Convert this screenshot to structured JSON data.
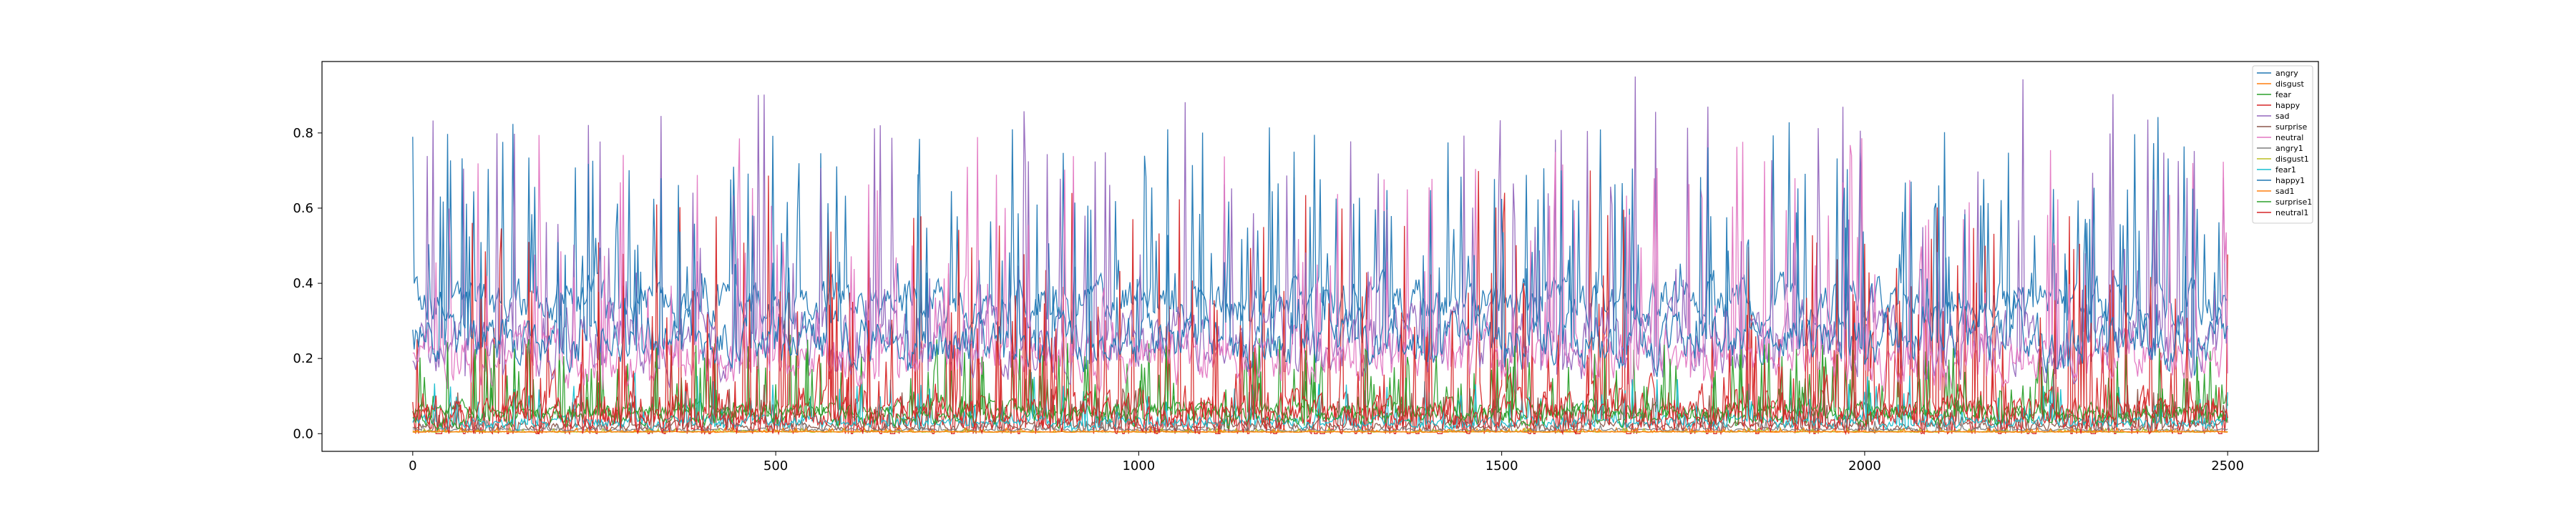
{
  "chart_data": {
    "type": "line",
    "title": "",
    "xlabel": "",
    "ylabel": "",
    "xlim": [
      -125,
      2625
    ],
    "ylim": [
      -0.047,
      0.99
    ],
    "x_ticks": [
      0,
      500,
      1000,
      1500,
      2000,
      2500
    ],
    "x_tick_labels": [
      "0",
      "500",
      "1000",
      "1500",
      "2000",
      "2500"
    ],
    "y_ticks": [
      0.0,
      0.2,
      0.4,
      0.6,
      0.8
    ],
    "y_tick_labels": [
      "0.0",
      "0.2",
      "0.4",
      "0.6",
      "0.8"
    ],
    "grid": false,
    "legend_position": "upper right",
    "x_range": [
      0,
      2500
    ],
    "series": [
      {
        "name": "angry",
        "color": "#1f77b4",
        "base": 0.35,
        "amplitude": 0.45,
        "seed": 11
      },
      {
        "name": "disgust",
        "color": "#ff7f0e",
        "base": 0.005,
        "amplitude": 0.01,
        "seed": 12
      },
      {
        "name": "fear",
        "color": "#2ca02c",
        "base": 0.06,
        "amplitude": 0.18,
        "seed": 13
      },
      {
        "name": "happy",
        "color": "#d62728",
        "base": 0.05,
        "amplitude": 0.6,
        "seed": 14
      },
      {
        "name": "sad",
        "color": "#9467bd",
        "base": 0.25,
        "amplitude": 0.65,
        "seed": 15
      },
      {
        "name": "surprise",
        "color": "#8c564b",
        "base": 0.02,
        "amplitude": 0.1,
        "seed": 16
      },
      {
        "name": "neutral",
        "color": "#e377c2",
        "base": 0.2,
        "amplitude": 0.55,
        "seed": 17
      },
      {
        "name": "angry1",
        "color": "#7f7f7f",
        "base": 0.01,
        "amplitude": 0.03,
        "seed": 18
      },
      {
        "name": "disgust1",
        "color": "#bcbd22",
        "base": 0.005,
        "amplitude": 0.01,
        "seed": 19
      },
      {
        "name": "fear1",
        "color": "#17becf",
        "base": 0.03,
        "amplitude": 0.12,
        "seed": 20
      },
      {
        "name": "happy1",
        "color": "#1f77b4",
        "base": 0.25,
        "amplitude": 0.5,
        "seed": 21
      },
      {
        "name": "sad1",
        "color": "#ff7f0e",
        "base": 0.005,
        "amplitude": 0.01,
        "seed": 22
      },
      {
        "name": "surprise1",
        "color": "#2ca02c",
        "base": 0.05,
        "amplitude": 0.2,
        "seed": 23
      },
      {
        "name": "neutral1",
        "color": "#d62728",
        "base": 0.05,
        "amplitude": 0.35,
        "seed": 24
      }
    ]
  }
}
